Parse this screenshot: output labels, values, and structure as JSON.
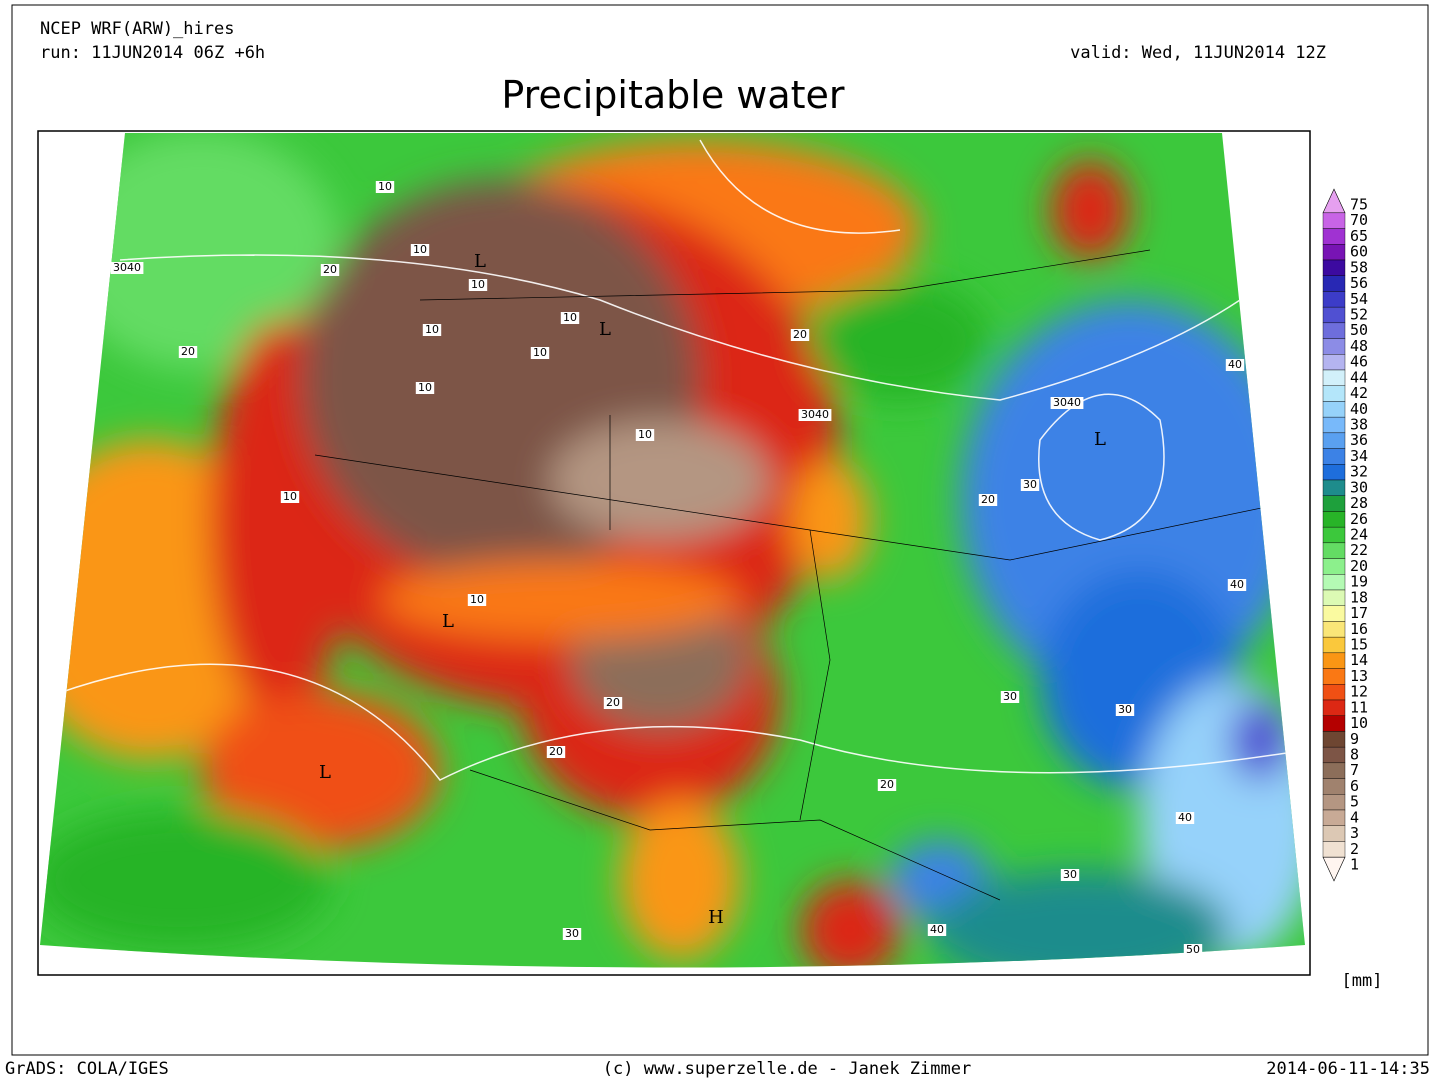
{
  "header": {
    "model": "NCEP WRF(ARW)_hires",
    "run": "run: 11JUN2014 06Z +6h",
    "valid": "valid: Wed, 11JUN2014 12Z",
    "title": "Precipitable water"
  },
  "legend": {
    "unit": "[mm]",
    "items": [
      {
        "label": "75",
        "color": "#e6a0f0"
      },
      {
        "label": "70",
        "color": "#c864e6"
      },
      {
        "label": "65",
        "color": "#a032d2"
      },
      {
        "label": "60",
        "color": "#7814b4"
      },
      {
        "label": "58",
        "color": "#3c0aa0"
      },
      {
        "label": "56",
        "color": "#2828b4"
      },
      {
        "label": "54",
        "color": "#3c3cc8"
      },
      {
        "label": "52",
        "color": "#5050d2"
      },
      {
        "label": "50",
        "color": "#6e6edc"
      },
      {
        "label": "48",
        "color": "#8c8ce6"
      },
      {
        "label": "46",
        "color": "#b4b4f0"
      },
      {
        "label": "44",
        "color": "#d2f0fa"
      },
      {
        "label": "42",
        "color": "#b4e6fa"
      },
      {
        "label": "40",
        "color": "#96d2fa"
      },
      {
        "label": "38",
        "color": "#78b9fa"
      },
      {
        "label": "36",
        "color": "#5aa0f0"
      },
      {
        "label": "34",
        "color": "#3c82e6"
      },
      {
        "label": "32",
        "color": "#1e6edc"
      },
      {
        "label": "30",
        "color": "#1e8c8c"
      },
      {
        "label": "28",
        "color": "#1ea03c"
      },
      {
        "label": "26",
        "color": "#28b428"
      },
      {
        "label": "24",
        "color": "#3cc83c"
      },
      {
        "label": "22",
        "color": "#64dc64"
      },
      {
        "label": "20",
        "color": "#8cf08c"
      },
      {
        "label": "19",
        "color": "#b4fab4"
      },
      {
        "label": "18",
        "color": "#dcfab4"
      },
      {
        "label": "17",
        "color": "#fafaa0"
      },
      {
        "label": "16",
        "color": "#fae678"
      },
      {
        "label": "15",
        "color": "#fac83c"
      },
      {
        "label": "14",
        "color": "#fa9614"
      },
      {
        "label": "13",
        "color": "#fa7814"
      },
      {
        "label": "12",
        "color": "#f05014"
      },
      {
        "label": "11",
        "color": "#dc2814"
      },
      {
        "label": "10",
        "color": "#b40000"
      },
      {
        "label": "9",
        "color": "#6e4632"
      },
      {
        "label": "8",
        "color": "#7d5546"
      },
      {
        "label": "7",
        "color": "#8c6e5a"
      },
      {
        "label": "6",
        "color": "#a0826e"
      },
      {
        "label": "5",
        "color": "#b49682"
      },
      {
        "label": "4",
        "color": "#c8aa96"
      },
      {
        "label": "3",
        "color": "#dcc8b4"
      },
      {
        "label": "2",
        "color": "#f0e1d2"
      },
      {
        "label": "1",
        "color": "#fff5f0"
      }
    ]
  },
  "map": {
    "labels": [
      "L",
      "L",
      "L",
      "L",
      "L",
      "H",
      "3040",
      "3040",
      "3040",
      "10",
      "10",
      "10",
      "10",
      "10",
      "10",
      "10",
      "10",
      "10",
      "10",
      "20",
      "20",
      "20",
      "20",
      "20",
      "20",
      "20",
      "30",
      "30",
      "30",
      "30",
      "30",
      "40",
      "40",
      "40",
      "40",
      "50"
    ]
  },
  "footer": {
    "left": "GrADS: COLA/IGES",
    "center": "(c) www.superzelle.de - Janek Zimmer",
    "right": "2014-06-11-14:35"
  }
}
